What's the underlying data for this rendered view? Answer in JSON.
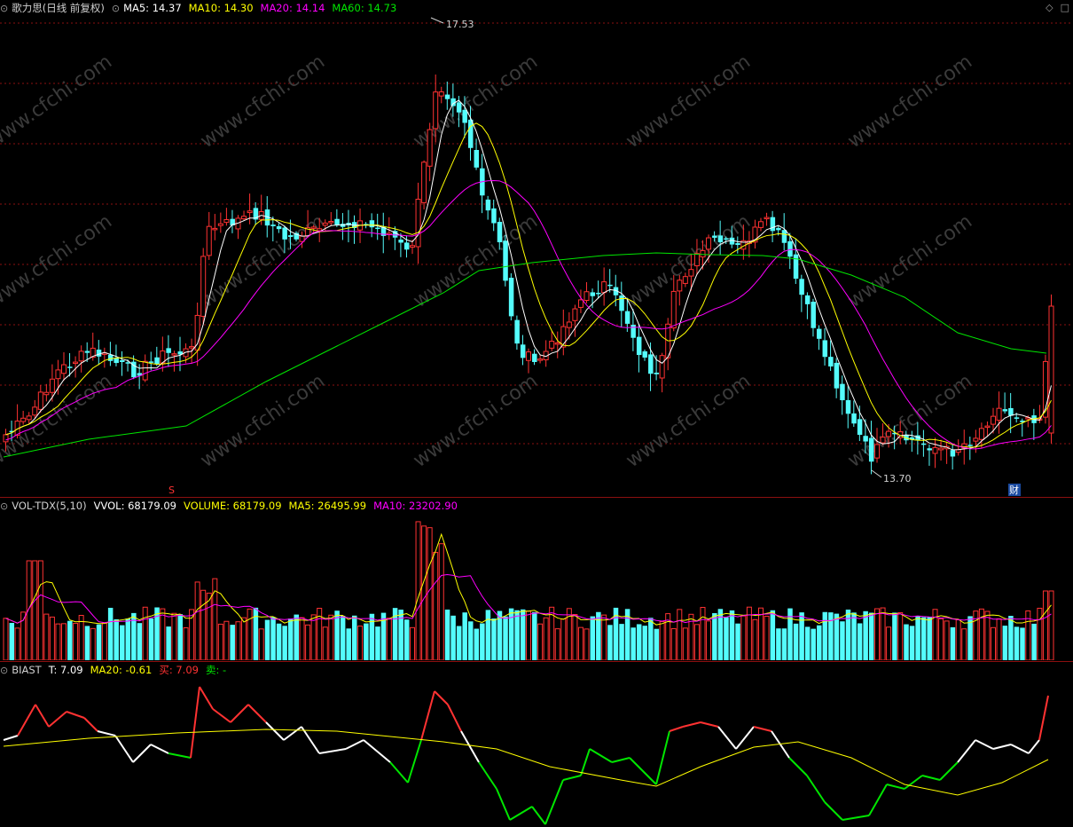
{
  "main": {
    "title": "歌力思(日线 前复权)",
    "ma5_label": "MA5: 14.37",
    "ma10_label": "MA10: 14.30",
    "ma20_label": "MA20: 14.14",
    "ma60_label": "MA60: 14.73",
    "high_label": "17.53",
    "low_label": "13.70",
    "s_marker": "S",
    "cai_marker": "财",
    "watermark": "www.cfchi.com"
  },
  "volume": {
    "indicator": "VOL-TDX(5,10)",
    "vvol": "VVOL: 68179.09",
    "volume": "VOLUME: 68179.09",
    "ma5": "MA5: 26495.99",
    "ma10": "MA10: 23202.90"
  },
  "biast": {
    "indicator": "BIAST",
    "t": "T: 7.09",
    "ma20": "MA20: -0.61",
    "buy": "买: 7.09",
    "sell": "卖: -"
  },
  "colors": {
    "up": "#ff3232",
    "down": "#54fcfc",
    "ma5": "#ffffff",
    "ma10": "#ffff00",
    "ma20": "#ff00ff",
    "ma60": "#00e600",
    "grid": "#8b0f0f"
  },
  "chart_data": {
    "type": "candlestick",
    "price_range": [
      13.7,
      17.53
    ],
    "volume_legend": [
      "VVOL",
      "VOLUME",
      "MA5",
      "MA10"
    ],
    "bias_legend": [
      "T",
      "MA20",
      "买",
      "卖"
    ]
  }
}
